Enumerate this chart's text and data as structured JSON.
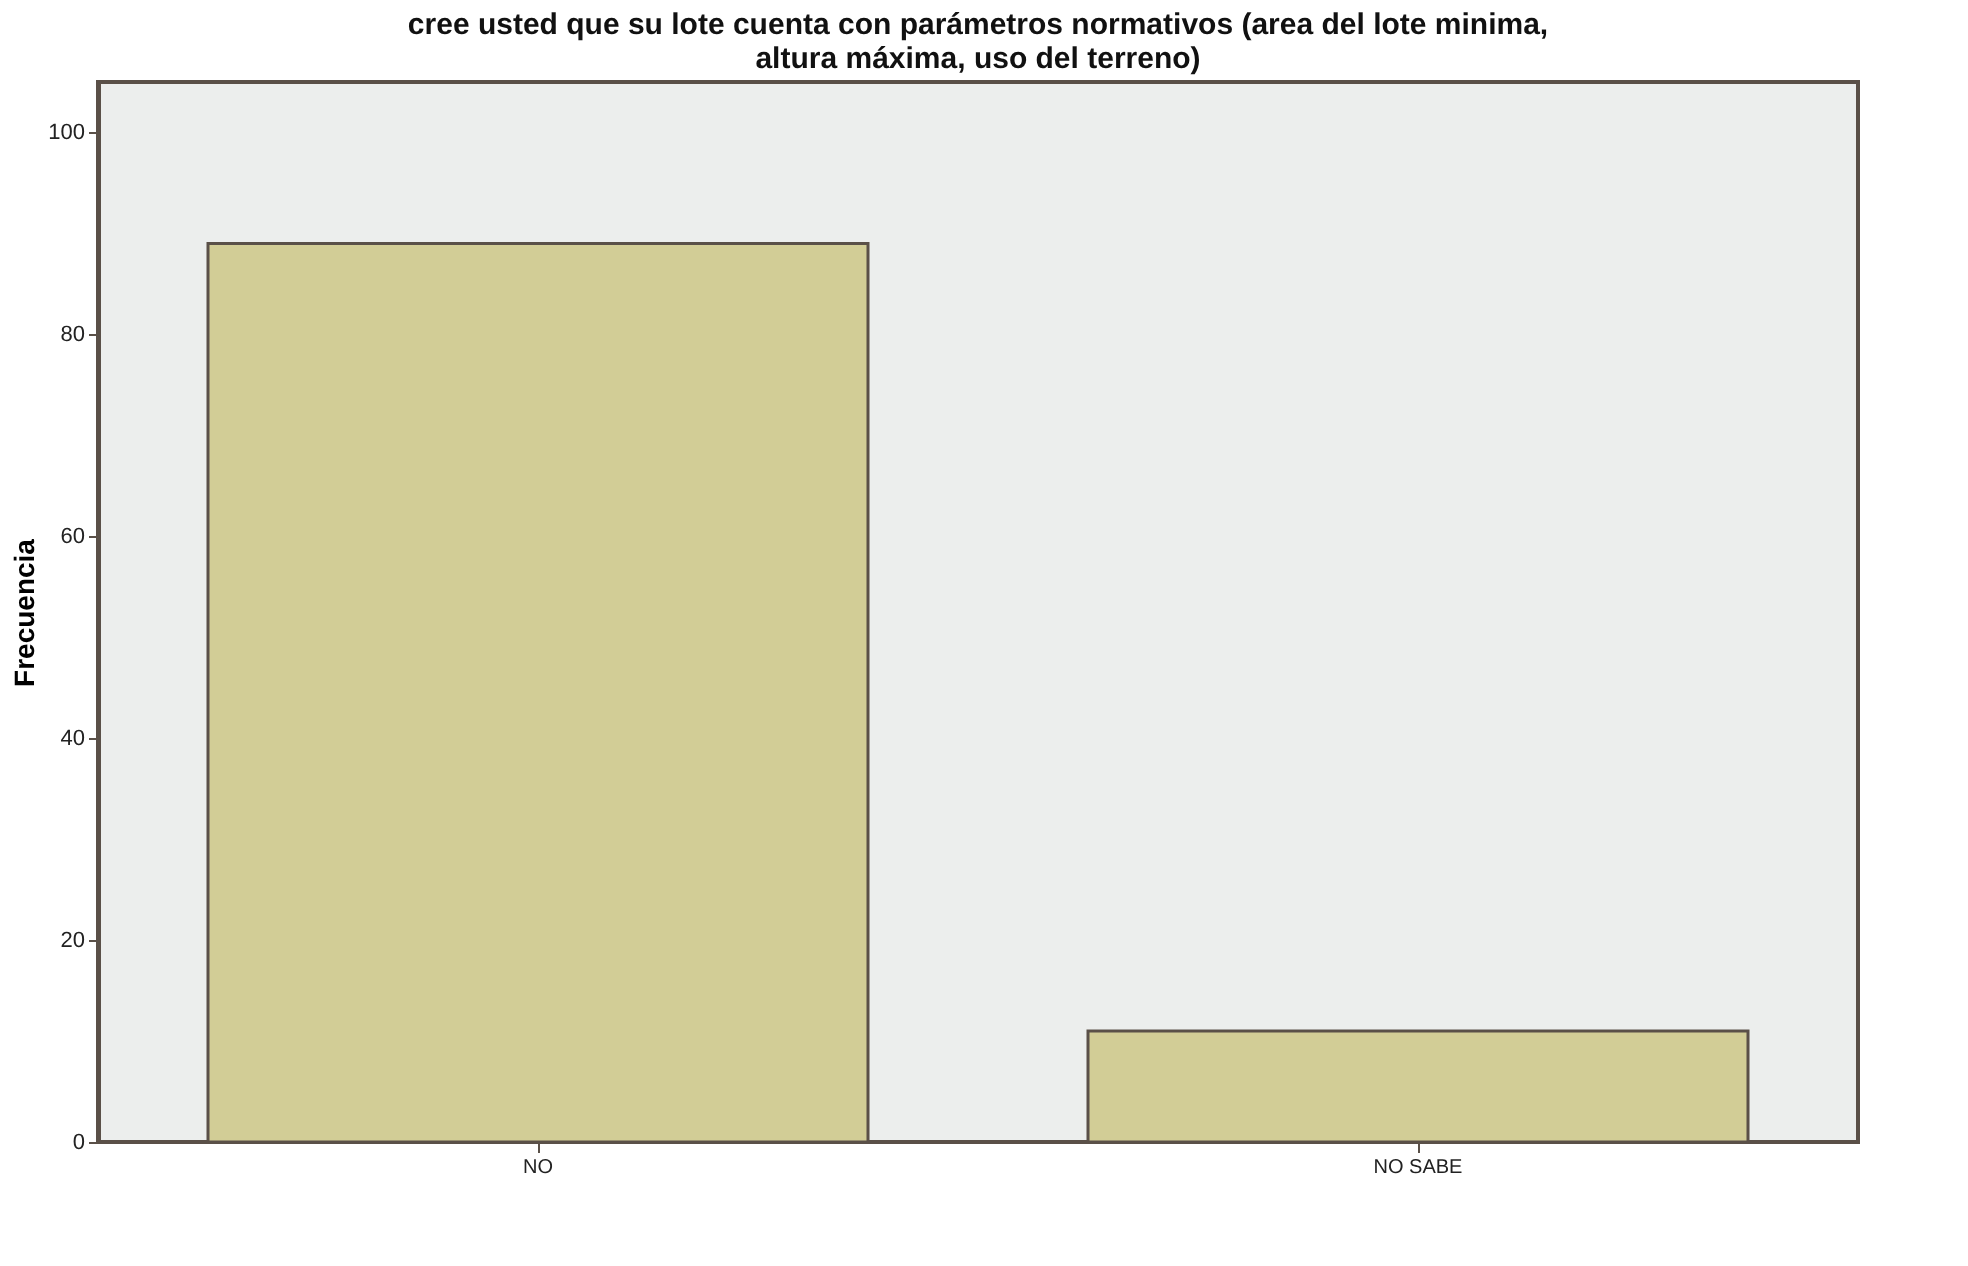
{
  "chart_data": {
    "type": "bar",
    "title": "cree usted que su lote cuenta con parámetros normativos (area del lote minima, altura máxima, uso del terreno)",
    "ylabel": "Frecuencia",
    "categories": [
      "NO",
      "NO SABE"
    ],
    "values": [
      89,
      11
    ],
    "color": "#d2cd96",
    "ylim": [
      0,
      105
    ],
    "yticks": [
      0,
      20,
      40,
      60,
      80,
      100
    ],
    "grid": false
  }
}
